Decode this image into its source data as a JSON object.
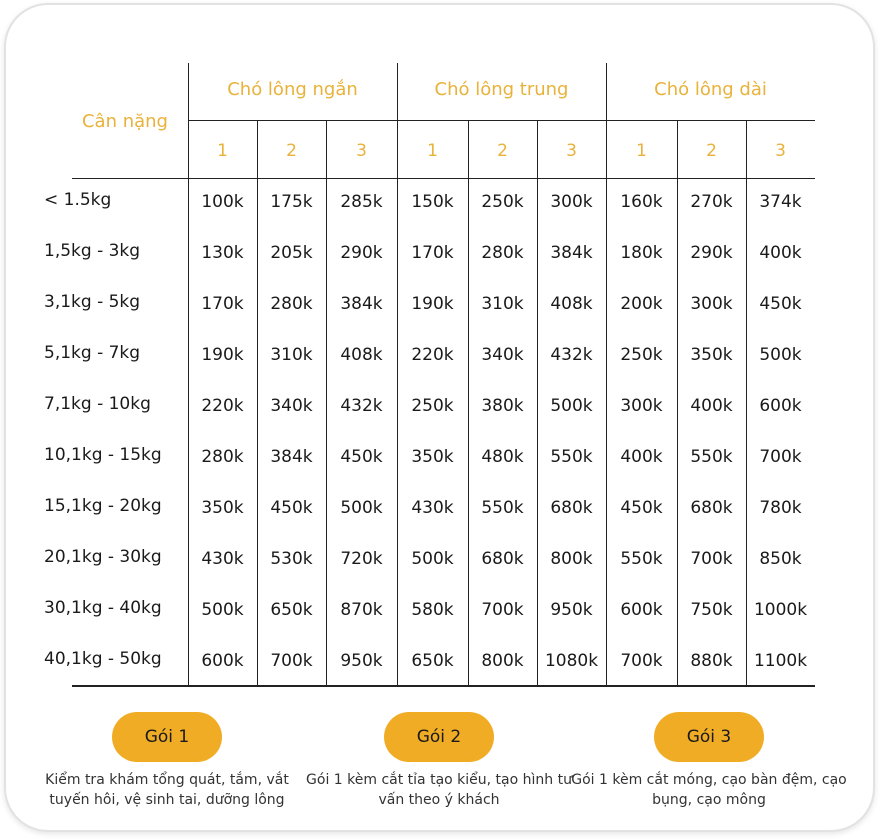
{
  "table": {
    "weight_header": "Cân nặng",
    "groups": [
      {
        "label": "Chó lông ngắn",
        "subs": [
          "1",
          "2",
          "3"
        ]
      },
      {
        "label": "Chó lông trung",
        "subs": [
          "1",
          "2",
          "3"
        ]
      },
      {
        "label": "Chó lông dài",
        "subs": [
          "1",
          "2",
          "3"
        ]
      }
    ],
    "rows": [
      {
        "weight": "< 1.5kg",
        "prices": [
          "100k",
          "175k",
          "285k",
          "150k",
          "250k",
          "300k",
          "160k",
          "270k",
          "374k"
        ]
      },
      {
        "weight": "1,5kg - 3kg",
        "prices": [
          "130k",
          "205k",
          "290k",
          "170k",
          "280k",
          "384k",
          "180k",
          "290k",
          "400k"
        ]
      },
      {
        "weight": "3,1kg - 5kg",
        "prices": [
          "170k",
          "280k",
          "384k",
          "190k",
          "310k",
          "408k",
          "200k",
          "300k",
          "450k"
        ]
      },
      {
        "weight": "5,1kg - 7kg",
        "prices": [
          "190k",
          "310k",
          "408k",
          "220k",
          "340k",
          "432k",
          "250k",
          "350k",
          "500k"
        ]
      },
      {
        "weight": "7,1kg - 10kg",
        "prices": [
          "220k",
          "340k",
          "432k",
          "250k",
          "380k",
          "500k",
          "300k",
          "400k",
          "600k"
        ]
      },
      {
        "weight": "10,1kg - 15kg",
        "prices": [
          "280k",
          "384k",
          "450k",
          "350k",
          "480k",
          "550k",
          "400k",
          "550k",
          "700k"
        ]
      },
      {
        "weight": "15,1kg - 20kg",
        "prices": [
          "350k",
          "450k",
          "500k",
          "430k",
          "550k",
          "680k",
          "450k",
          "680k",
          "780k"
        ]
      },
      {
        "weight": "20,1kg - 30kg",
        "prices": [
          "430k",
          "530k",
          "720k",
          "500k",
          "680k",
          "800k",
          "550k",
          "700k",
          "850k"
        ]
      },
      {
        "weight": "30,1kg - 40kg",
        "prices": [
          "500k",
          "650k",
          "870k",
          "580k",
          "700k",
          "950k",
          "600k",
          "750k",
          "1000k"
        ]
      },
      {
        "weight": "40,1kg - 50kg",
        "prices": [
          "600k",
          "700k",
          "950k",
          "650k",
          "800k",
          "1080k",
          "700k",
          "880k",
          "1100k"
        ]
      }
    ]
  },
  "packages": [
    {
      "label": "Gói 1",
      "description": "Kiểm tra khám tổng quát, tắm, vắt tuyến hôi, vệ sinh tai, dưỡng lông"
    },
    {
      "label": "Gói 2",
      "description": "Gói 1 kèm cắt tỉa tạo kiểu, tạo hình tư vấn theo ý khách"
    },
    {
      "label": "Gói 3",
      "description": "Gói 1 kèm cắt móng, cạo bàn đệm, cạo bụng, cạo mông"
    }
  ],
  "colors": {
    "accent_text": "#e9b23a",
    "button_fill": "#f0ac24",
    "rule": "#222222"
  }
}
